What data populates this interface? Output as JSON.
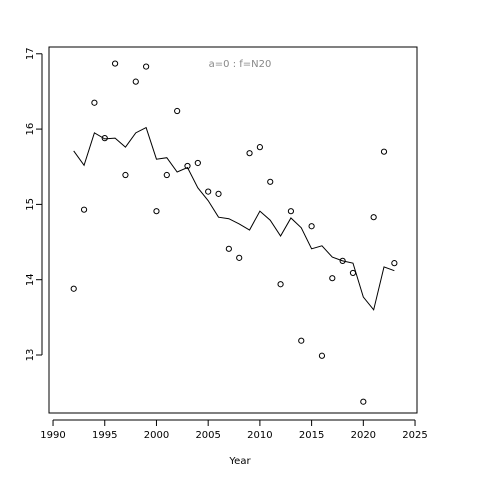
{
  "chart_data": {
    "type": "scatter",
    "annotation": "a=0  :  f=N20",
    "xlabel": "Year",
    "x": [
      1992,
      1993,
      1994,
      1995,
      1996,
      1997,
      1998,
      1999,
      2000,
      2001,
      2002,
      2003,
      2004,
      2005,
      2006,
      2007,
      2008,
      2009,
      2010,
      2011,
      2012,
      2013,
      2014,
      2015,
      2016,
      2017,
      2018,
      2019,
      2020,
      2021,
      2022,
      2023
    ],
    "series": [
      {
        "type": "scatter",
        "color": "#000000",
        "values": [
          13.88,
          14.93,
          16.35,
          15.88,
          16.87,
          15.39,
          16.63,
          16.83,
          14.91,
          15.39,
          16.24,
          15.51,
          15.55,
          15.17,
          15.14,
          14.41,
          14.29,
          15.68,
          15.76,
          15.3,
          13.94,
          14.91,
          13.19,
          14.71,
          12.99,
          14.02,
          14.25,
          14.09,
          12.38,
          14.83,
          15.7,
          14.22
        ]
      },
      {
        "type": "line",
        "color": "#000000",
        "values": [
          15.71,
          15.52,
          15.95,
          15.87,
          15.88,
          15.76,
          15.95,
          16.02,
          15.6,
          15.62,
          15.43,
          15.49,
          15.22,
          15.05,
          14.83,
          14.81,
          14.74,
          14.66,
          14.91,
          14.79,
          14.58,
          14.82,
          14.69,
          14.41,
          14.45,
          14.3,
          14.25,
          14.22,
          13.77,
          13.6,
          14.17,
          14.12
        ]
      }
    ],
    "xlim": [
      1989.61,
      2025.19
    ],
    "xticks": [
      1990,
      1995,
      2000,
      2005,
      2010,
      2015,
      2020,
      2025
    ],
    "ylim": [
      12.23,
      17.09
    ],
    "yticks": [
      13,
      14,
      15,
      16,
      17
    ]
  }
}
